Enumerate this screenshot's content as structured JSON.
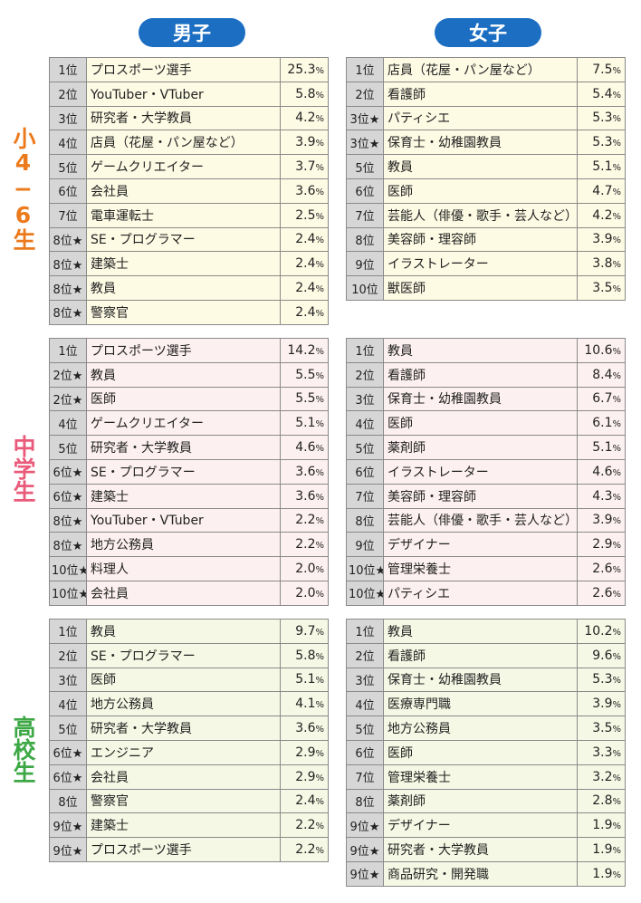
{
  "headers": {
    "boys": "男子",
    "girls": "女子"
  },
  "colors": {
    "header": "#1b6ec2",
    "elem_label": "#ec7a1c",
    "mid_label": "#ea5a7a",
    "high_label": "#3da845"
  },
  "sections": [
    {
      "label": "小4−6生",
      "cls": "elem",
      "boys": [
        [
          "1位",
          "プロスポーツ選手",
          "25.3"
        ],
        [
          "2位",
          "YouTuber・VTuber",
          "5.8"
        ],
        [
          "3位",
          "研究者・大学教員",
          "4.2"
        ],
        [
          "4位",
          "店員（花屋・パン屋など）",
          "3.9"
        ],
        [
          "5位",
          "ゲームクリエイター",
          "3.7"
        ],
        [
          "6位",
          "会社員",
          "3.6"
        ],
        [
          "7位",
          "電車運転士",
          "2.5"
        ],
        [
          "8位★",
          "SE・プログラマー",
          "2.4"
        ],
        [
          "8位★",
          "建築士",
          "2.4"
        ],
        [
          "8位★",
          "教員",
          "2.4"
        ],
        [
          "8位★",
          "警察官",
          "2.4"
        ]
      ],
      "girls": [
        [
          "1位",
          "店員（花屋・パン屋など）",
          "7.5"
        ],
        [
          "2位",
          "看護師",
          "5.4"
        ],
        [
          "3位★",
          "パティシエ",
          "5.3"
        ],
        [
          "3位★",
          "保育士・幼稚園教員",
          "5.3"
        ],
        [
          "5位",
          "教員",
          "5.1"
        ],
        [
          "6位",
          "医師",
          "4.7"
        ],
        [
          "7位",
          "芸能人（俳優・歌手・芸人など）",
          "4.2"
        ],
        [
          "8位",
          "美容師・理容師",
          "3.9"
        ],
        [
          "9位",
          "イラストレーター",
          "3.8"
        ],
        [
          "10位",
          "獣医師",
          "3.5"
        ]
      ]
    },
    {
      "label": "中学生",
      "cls": "mid",
      "boys": [
        [
          "1位",
          "プロスポーツ選手",
          "14.2"
        ],
        [
          "2位★",
          "教員",
          "5.5"
        ],
        [
          "2位★",
          "医師",
          "5.5"
        ],
        [
          "4位",
          "ゲームクリエイター",
          "5.1"
        ],
        [
          "5位",
          "研究者・大学教員",
          "4.6"
        ],
        [
          "6位★",
          "SE・プログラマー",
          "3.6"
        ],
        [
          "6位★",
          "建築士",
          "3.6"
        ],
        [
          "8位★",
          "YouTuber・VTuber",
          "2.2"
        ],
        [
          "8位★",
          "地方公務員",
          "2.2"
        ],
        [
          "10位★",
          "料理人",
          "2.0"
        ],
        [
          "10位★",
          "会社員",
          "2.0"
        ]
      ],
      "girls": [
        [
          "1位",
          "教員",
          "10.6"
        ],
        [
          "2位",
          "看護師",
          "8.4"
        ],
        [
          "3位",
          "保育士・幼稚園教員",
          "6.7"
        ],
        [
          "4位",
          "医師",
          "6.1"
        ],
        [
          "5位",
          "薬剤師",
          "5.1"
        ],
        [
          "6位",
          "イラストレーター",
          "4.6"
        ],
        [
          "7位",
          "美容師・理容師",
          "4.3"
        ],
        [
          "8位",
          "芸能人（俳優・歌手・芸人など）",
          "3.9"
        ],
        [
          "9位",
          "デザイナー",
          "2.9"
        ],
        [
          "10位★",
          "管理栄養士",
          "2.6"
        ],
        [
          "10位★",
          "パティシエ",
          "2.6"
        ]
      ]
    },
    {
      "label": "高校生",
      "cls": "high",
      "boys": [
        [
          "1位",
          "教員",
          "9.7"
        ],
        [
          "2位",
          "SE・プログラマー",
          "5.8"
        ],
        [
          "3位",
          "医師",
          "5.1"
        ],
        [
          "4位",
          "地方公務員",
          "4.1"
        ],
        [
          "5位",
          "研究者・大学教員",
          "3.6"
        ],
        [
          "6位★",
          "エンジニア",
          "2.9"
        ],
        [
          "6位★",
          "会社員",
          "2.9"
        ],
        [
          "8位",
          "警察官",
          "2.4"
        ],
        [
          "9位★",
          "建築士",
          "2.2"
        ],
        [
          "9位★",
          "プロスポーツ選手",
          "2.2"
        ]
      ],
      "girls": [
        [
          "1位",
          "教員",
          "10.2"
        ],
        [
          "2位",
          "看護師",
          "9.6"
        ],
        [
          "3位",
          "保育士・幼稚園教員",
          "5.3"
        ],
        [
          "4位",
          "医療専門職",
          "3.9"
        ],
        [
          "5位",
          "地方公務員",
          "3.5"
        ],
        [
          "6位",
          "医師",
          "3.3"
        ],
        [
          "7位",
          "管理栄養士",
          "3.2"
        ],
        [
          "8位",
          "薬剤師",
          "2.8"
        ],
        [
          "9位★",
          "デザイナー",
          "1.9"
        ],
        [
          "9位★",
          "研究者・大学教員",
          "1.9"
        ],
        [
          "9位★",
          "商品研究・開発職",
          "1.9"
        ]
      ]
    }
  ],
  "percent_sign": "%"
}
